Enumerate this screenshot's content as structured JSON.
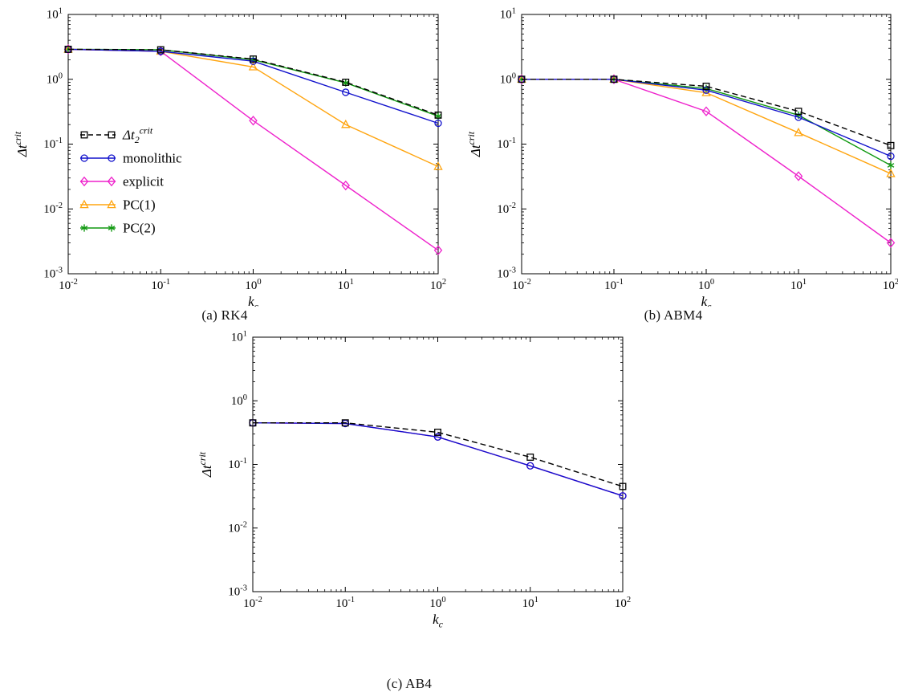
{
  "figure": {
    "background": "#ffffff",
    "frame_color": "#000000"
  },
  "chart_data": [
    {
      "id": "rk4",
      "type": "line",
      "caption": "(a) RK4",
      "xlabel": "k_{c}",
      "ylabel": "Δt^{crit}",
      "xscale": "log",
      "yscale": "log",
      "xlim": [
        0.01,
        100
      ],
      "ylim": [
        0.001,
        10
      ],
      "grid": false,
      "x": [
        0.01,
        0.1,
        1,
        10,
        100
      ],
      "legend": {
        "show": true,
        "position": "left-middle"
      },
      "series": [
        {
          "name": "Δt_{2}^{crit}",
          "color": "#000000",
          "line": "dashed",
          "marker": "square",
          "values": [
            2.9,
            2.85,
            2.05,
            0.9,
            0.28
          ]
        },
        {
          "name": "monolithic",
          "color": "#1111cc",
          "line": "solid",
          "marker": "circle",
          "values": [
            2.9,
            2.7,
            1.9,
            0.63,
            0.21
          ]
        },
        {
          "name": "explicit",
          "color": "#ee22cc",
          "line": "solid",
          "marker": "diamond",
          "values": [
            2.9,
            2.7,
            0.23,
            0.023,
            0.0023
          ]
        },
        {
          "name": "PC(1)",
          "color": "#ffa510",
          "line": "solid",
          "marker": "triangle",
          "values": [
            2.9,
            2.7,
            1.55,
            0.2,
            0.045
          ]
        },
        {
          "name": "PC(2)",
          "color": "#119911",
          "line": "solid",
          "marker": "asterisk",
          "values": [
            2.9,
            2.85,
            2.0,
            0.88,
            0.27
          ]
        }
      ]
    },
    {
      "id": "abm4",
      "type": "line",
      "caption": "(b) ABM4",
      "xlabel": "k_{c}",
      "ylabel": "Δt^{crit}",
      "xscale": "log",
      "yscale": "log",
      "xlim": [
        0.01,
        100
      ],
      "ylim": [
        0.001,
        10
      ],
      "grid": false,
      "x": [
        0.01,
        0.1,
        1,
        10,
        100
      ],
      "legend": {
        "show": false
      },
      "series": [
        {
          "name": "Δt_{2}^{crit}",
          "color": "#000000",
          "line": "dashed",
          "marker": "square",
          "values": [
            1.0,
            1.0,
            0.78,
            0.32,
            0.095
          ]
        },
        {
          "name": "monolithic",
          "color": "#1111cc",
          "line": "solid",
          "marker": "circle",
          "values": [
            1.0,
            1.0,
            0.68,
            0.26,
            0.065
          ]
        },
        {
          "name": "explicit",
          "color": "#ee22cc",
          "line": "solid",
          "marker": "diamond",
          "values": [
            1.0,
            1.0,
            0.32,
            0.032,
            0.003
          ]
        },
        {
          "name": "PC(1)",
          "color": "#ffa510",
          "line": "solid",
          "marker": "triangle",
          "values": [
            1.0,
            1.0,
            0.62,
            0.15,
            0.035
          ]
        },
        {
          "name": "PC(2)",
          "color": "#119911",
          "line": "solid",
          "marker": "asterisk",
          "values": [
            1.0,
            1.0,
            0.72,
            0.28,
            0.047
          ]
        }
      ]
    },
    {
      "id": "ab4",
      "type": "line",
      "caption": "(c) AB4",
      "xlabel": "k_{c}",
      "ylabel": "Δt^{crit}",
      "xscale": "log",
      "yscale": "log",
      "xlim": [
        0.01,
        100
      ],
      "ylim": [
        0.001,
        10
      ],
      "grid": false,
      "x": [
        0.01,
        0.1,
        1,
        10,
        100
      ],
      "legend": {
        "show": false
      },
      "series": [
        {
          "name": "Δt_{2}^{crit}",
          "color": "#000000",
          "line": "dashed",
          "marker": "square",
          "values": [
            0.45,
            0.45,
            0.32,
            0.13,
            0.045
          ]
        },
        {
          "name": "monolithic",
          "color": "#1111cc",
          "line": "solid",
          "marker": "circle",
          "values": [
            0.45,
            0.44,
            0.27,
            0.095,
            0.032
          ]
        },
        {
          "name": "explicit",
          "color": "#ee22cc",
          "line": "solid",
          "marker": "circle",
          "values": [
            0.45,
            0.44,
            0.27,
            0.095,
            0.032
          ]
        }
      ]
    }
  ]
}
